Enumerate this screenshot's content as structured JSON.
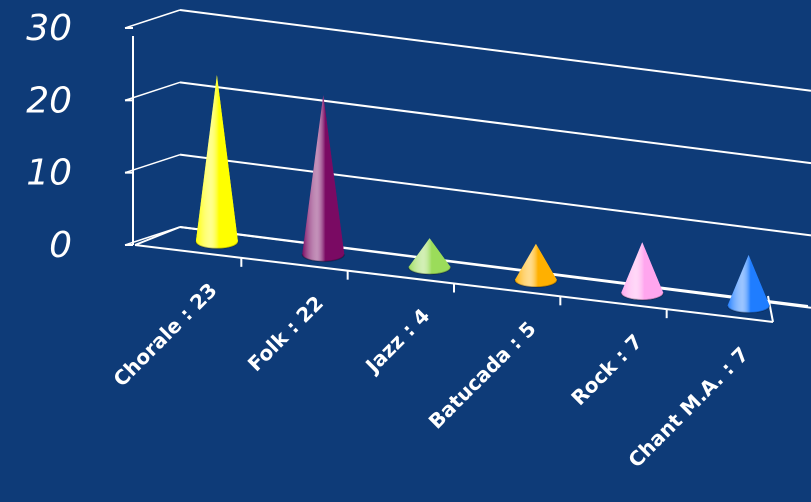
{
  "chart_data": {
    "type": "bar",
    "style": "3d-cone",
    "categories": [
      "Chorale : 23",
      "Folk : 22",
      "Jazz : 4",
      "Batucada : 5",
      "Rock : 7",
      "Chant M.A. : 7"
    ],
    "values": [
      23,
      22,
      4,
      5,
      7,
      7
    ],
    "colors": [
      "#ffff00",
      "#7a0a63",
      "#9bdc5a",
      "#ffb000",
      "#ffa6ee",
      "#1f7dff"
    ],
    "y_ticks": [
      "0",
      "10",
      "20",
      "30"
    ],
    "ylim": [
      0,
      30
    ],
    "grid": true,
    "legend": "none",
    "title": "",
    "xlabel": "",
    "ylabel": ""
  }
}
